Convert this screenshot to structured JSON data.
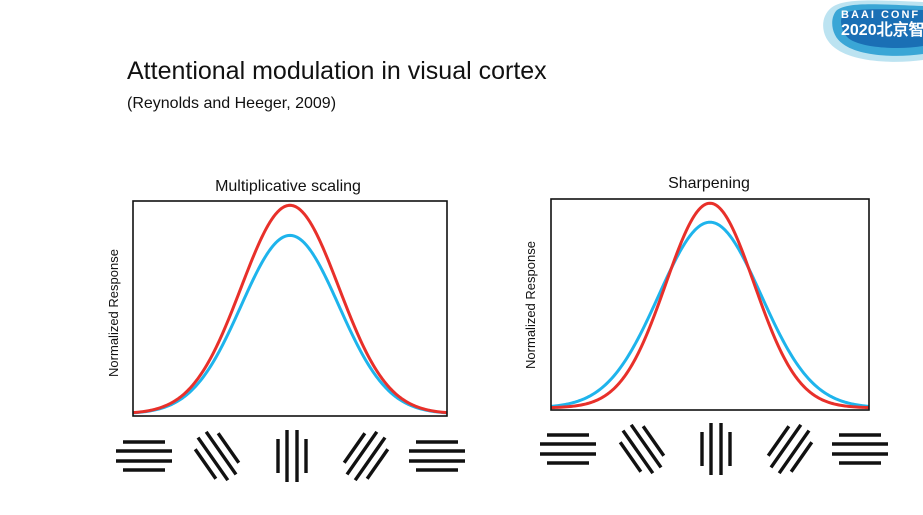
{
  "slide": {
    "title": "Attentional modulation in visual cortex",
    "subtitle": "(Reynolds and Heeger, 2009)"
  },
  "logo": {
    "line1": "BAAI CONF",
    "line2": "2020北京智"
  },
  "colors": {
    "attended": "#e8302a",
    "unattended": "#1eb4ec",
    "axis": "#111111",
    "glyph": "#111111"
  },
  "chart_data": [
    {
      "type": "line",
      "title": "Multiplicative scaling",
      "ylabel": "Normalized Response",
      "x_orientation_icons": [
        "horizontal",
        "diagonal-left",
        "vertical",
        "diagonal-right",
        "horizontal"
      ],
      "xlim": [
        -90,
        90
      ],
      "ylim": [
        0,
        1.0
      ],
      "series": [
        {
          "color_key": "attended",
          "peak": 0.98,
          "baseline": 0.01,
          "width": 28
        },
        {
          "color_key": "unattended",
          "peak": 0.84,
          "baseline": 0.01,
          "width": 28
        }
      ]
    },
    {
      "type": "line",
      "title": "Sharpening",
      "ylabel": "Normalized Response",
      "x_orientation_icons": [
        "horizontal",
        "diagonal-left",
        "vertical",
        "diagonal-right",
        "horizontal"
      ],
      "xlim": [
        -90,
        90
      ],
      "ylim": [
        0,
        1.0
      ],
      "series": [
        {
          "color_key": "attended",
          "peak": 0.98,
          "baseline": 0.01,
          "width": 25
        },
        {
          "color_key": "unattended",
          "peak": 0.89,
          "baseline": 0.01,
          "width": 29
        }
      ]
    }
  ]
}
